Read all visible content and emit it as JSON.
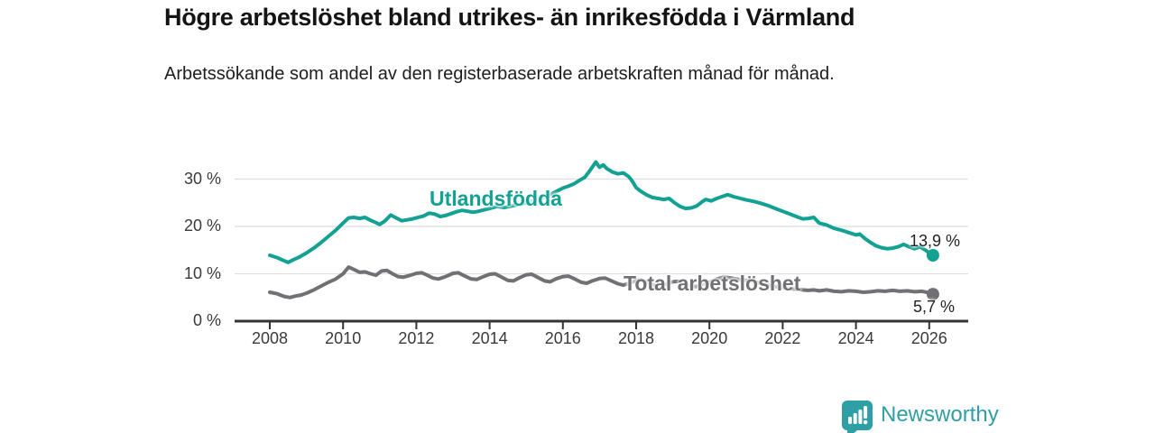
{
  "header": {
    "title": "Högre arbetslöshet bland utrikes- än inrikesfödda i Värmland",
    "subtitle": "Arbetssökande som andel av den registerbaserade arbetskraften månad för månad."
  },
  "branding": {
    "wordmark": "Newsworthy",
    "color": "#2E9FA4",
    "logo_icon": "newsworthy-speech-bubble-barchart-icon"
  },
  "chart_data": {
    "type": "line",
    "title": "Högre arbetslöshet bland utrikes- än inrikesfödda i Värmland",
    "subtitle": "Arbetssökande som andel av den registerbaserade arbetskraften månad för månad.",
    "xlabel": "",
    "ylabel": "",
    "unit": "%",
    "grid": true,
    "x_axis": {
      "range": [
        2007,
        2027.1
      ],
      "ticks": [
        {
          "value": 2008,
          "label": "2008"
        },
        {
          "value": 2010,
          "label": "2010"
        },
        {
          "value": 2012,
          "label": "2012"
        },
        {
          "value": 2014,
          "label": "2014"
        },
        {
          "value": 2016,
          "label": "2016"
        },
        {
          "value": 2018,
          "label": "2018"
        },
        {
          "value": 2020,
          "label": "2020"
        },
        {
          "value": 2022,
          "label": "2022"
        },
        {
          "value": 2024,
          "label": "2024"
        },
        {
          "value": 2026,
          "label": "2026"
        }
      ]
    },
    "y_axis": {
      "range": [
        0,
        35.5
      ],
      "ticks": [
        {
          "value": 0,
          "label": "0 %"
        },
        {
          "value": 10,
          "label": "10 %"
        },
        {
          "value": 20,
          "label": "20 %"
        },
        {
          "value": 30,
          "label": "30 %"
        }
      ]
    },
    "colors": {
      "grid": "#dedede",
      "axis": "#333333"
    },
    "series": [
      {
        "name": "Utlandsfödda",
        "color": "#12A192",
        "end_label": "13,9 %",
        "end_value": 13.9,
        "points": [
          [
            2008.0,
            13.9
          ],
          [
            2008.2,
            13.4
          ],
          [
            2008.35,
            12.9
          ],
          [
            2008.5,
            12.4
          ],
          [
            2008.65,
            13.0
          ],
          [
            2008.8,
            13.5
          ],
          [
            2009.0,
            14.4
          ],
          [
            2009.2,
            15.4
          ],
          [
            2009.4,
            16.6
          ],
          [
            2009.6,
            17.9
          ],
          [
            2009.8,
            19.2
          ],
          [
            2010.0,
            20.7
          ],
          [
            2010.15,
            21.8
          ],
          [
            2010.3,
            21.9
          ],
          [
            2010.45,
            21.7
          ],
          [
            2010.6,
            21.9
          ],
          [
            2010.75,
            21.3
          ],
          [
            2010.9,
            20.8
          ],
          [
            2011.0,
            20.4
          ],
          [
            2011.15,
            21.2
          ],
          [
            2011.3,
            22.4
          ],
          [
            2011.45,
            21.8
          ],
          [
            2011.6,
            21.2
          ],
          [
            2011.75,
            21.4
          ],
          [
            2011.9,
            21.6
          ],
          [
            2012.05,
            21.9
          ],
          [
            2012.2,
            22.2
          ],
          [
            2012.35,
            22.8
          ],
          [
            2012.5,
            22.6
          ],
          [
            2012.65,
            22.1
          ],
          [
            2012.8,
            22.3
          ],
          [
            2012.95,
            22.7
          ],
          [
            2013.1,
            23.1
          ],
          [
            2013.25,
            23.4
          ],
          [
            2013.4,
            23.2
          ],
          [
            2013.55,
            23.0
          ],
          [
            2013.7,
            23.2
          ],
          [
            2013.85,
            23.5
          ],
          [
            2014.0,
            23.8
          ],
          [
            2014.2,
            24.2
          ],
          [
            2014.4,
            24.0
          ],
          [
            2014.6,
            24.3
          ],
          [
            2014.8,
            24.6
          ],
          [
            2015.0,
            25.0
          ],
          [
            2015.2,
            25.4
          ],
          [
            2015.4,
            25.9
          ],
          [
            2015.6,
            26.5
          ],
          [
            2015.8,
            27.3
          ],
          [
            2016.0,
            28.1
          ],
          [
            2016.15,
            28.5
          ],
          [
            2016.3,
            29.0
          ],
          [
            2016.45,
            29.7
          ],
          [
            2016.6,
            30.4
          ],
          [
            2016.7,
            31.4
          ],
          [
            2016.8,
            32.5
          ],
          [
            2016.9,
            33.6
          ],
          [
            2017.0,
            32.5
          ],
          [
            2017.1,
            33.0
          ],
          [
            2017.2,
            32.2
          ],
          [
            2017.35,
            31.5
          ],
          [
            2017.5,
            31.1
          ],
          [
            2017.65,
            31.3
          ],
          [
            2017.8,
            30.5
          ],
          [
            2017.9,
            29.5
          ],
          [
            2018.0,
            28.2
          ],
          [
            2018.15,
            27.3
          ],
          [
            2018.3,
            26.6
          ],
          [
            2018.45,
            26.1
          ],
          [
            2018.6,
            25.9
          ],
          [
            2018.75,
            25.7
          ],
          [
            2018.9,
            25.9
          ],
          [
            2019.05,
            25.0
          ],
          [
            2019.2,
            24.2
          ],
          [
            2019.35,
            23.8
          ],
          [
            2019.5,
            23.9
          ],
          [
            2019.65,
            24.3
          ],
          [
            2019.8,
            25.2
          ],
          [
            2019.9,
            25.7
          ],
          [
            2020.05,
            25.4
          ],
          [
            2020.2,
            25.9
          ],
          [
            2020.35,
            26.3
          ],
          [
            2020.5,
            26.7
          ],
          [
            2020.65,
            26.3
          ],
          [
            2020.8,
            26.0
          ],
          [
            2021.0,
            25.6
          ],
          [
            2021.2,
            25.3
          ],
          [
            2021.4,
            24.9
          ],
          [
            2021.6,
            24.4
          ],
          [
            2021.8,
            23.8
          ],
          [
            2022.0,
            23.2
          ],
          [
            2022.2,
            22.6
          ],
          [
            2022.4,
            22.0
          ],
          [
            2022.55,
            21.6
          ],
          [
            2022.7,
            21.7
          ],
          [
            2022.85,
            21.9
          ],
          [
            2023.0,
            20.7
          ],
          [
            2023.2,
            20.3
          ],
          [
            2023.4,
            19.6
          ],
          [
            2023.6,
            19.2
          ],
          [
            2023.8,
            18.7
          ],
          [
            2024.0,
            18.2
          ],
          [
            2024.1,
            18.4
          ],
          [
            2024.25,
            17.4
          ],
          [
            2024.4,
            16.6
          ],
          [
            2024.55,
            15.9
          ],
          [
            2024.7,
            15.5
          ],
          [
            2024.85,
            15.3
          ],
          [
            2025.0,
            15.4
          ],
          [
            2025.15,
            15.7
          ],
          [
            2025.3,
            16.2
          ],
          [
            2025.45,
            15.7
          ],
          [
            2025.6,
            15.3
          ],
          [
            2025.75,
            15.7
          ],
          [
            2025.9,
            15.0
          ],
          [
            2026.0,
            14.4
          ],
          [
            2026.1,
            13.9
          ]
        ]
      },
      {
        "name": "Total arbetslöshet",
        "color": "#717175",
        "end_label": "5,7 %",
        "end_value": 5.7,
        "points": [
          [
            2008.0,
            6.1
          ],
          [
            2008.2,
            5.8
          ],
          [
            2008.4,
            5.2
          ],
          [
            2008.55,
            5.0
          ],
          [
            2008.7,
            5.3
          ],
          [
            2008.85,
            5.5
          ],
          [
            2009.0,
            5.9
          ],
          [
            2009.2,
            6.6
          ],
          [
            2009.4,
            7.4
          ],
          [
            2009.6,
            8.2
          ],
          [
            2009.8,
            8.9
          ],
          [
            2010.0,
            10.0
          ],
          [
            2010.15,
            11.4
          ],
          [
            2010.3,
            10.9
          ],
          [
            2010.45,
            10.3
          ],
          [
            2010.6,
            10.4
          ],
          [
            2010.75,
            10.0
          ],
          [
            2010.9,
            9.7
          ],
          [
            2011.05,
            10.6
          ],
          [
            2011.2,
            10.7
          ],
          [
            2011.35,
            10.0
          ],
          [
            2011.5,
            9.4
          ],
          [
            2011.65,
            9.3
          ],
          [
            2011.8,
            9.6
          ],
          [
            2012.0,
            10.1
          ],
          [
            2012.15,
            10.2
          ],
          [
            2012.3,
            9.7
          ],
          [
            2012.45,
            9.1
          ],
          [
            2012.6,
            8.9
          ],
          [
            2012.8,
            9.4
          ],
          [
            2013.0,
            10.1
          ],
          [
            2013.15,
            10.2
          ],
          [
            2013.3,
            9.6
          ],
          [
            2013.5,
            8.9
          ],
          [
            2013.65,
            8.8
          ],
          [
            2013.8,
            9.3
          ],
          [
            2014.0,
            9.9
          ],
          [
            2014.15,
            10.0
          ],
          [
            2014.3,
            9.4
          ],
          [
            2014.5,
            8.6
          ],
          [
            2014.65,
            8.5
          ],
          [
            2014.8,
            9.1
          ],
          [
            2015.0,
            9.8
          ],
          [
            2015.15,
            9.9
          ],
          [
            2015.3,
            9.3
          ],
          [
            2015.5,
            8.5
          ],
          [
            2015.65,
            8.3
          ],
          [
            2015.8,
            8.9
          ],
          [
            2016.0,
            9.4
          ],
          [
            2016.15,
            9.5
          ],
          [
            2016.3,
            9.0
          ],
          [
            2016.5,
            8.2
          ],
          [
            2016.65,
            8.0
          ],
          [
            2016.8,
            8.5
          ],
          [
            2017.0,
            9.0
          ],
          [
            2017.15,
            9.1
          ],
          [
            2017.3,
            8.6
          ],
          [
            2017.5,
            7.9
          ],
          [
            2017.65,
            7.6
          ],
          [
            2017.8,
            8.0
          ],
          [
            2018.0,
            8.6
          ],
          [
            2018.15,
            8.7
          ],
          [
            2018.3,
            8.2
          ],
          [
            2018.5,
            7.6
          ],
          [
            2018.65,
            7.4
          ],
          [
            2018.8,
            7.8
          ],
          [
            2019.0,
            8.3
          ],
          [
            2019.15,
            8.4
          ],
          [
            2019.3,
            7.9
          ],
          [
            2019.5,
            7.4
          ],
          [
            2019.65,
            7.3
          ],
          [
            2019.8,
            7.7
          ],
          [
            2020.0,
            8.2
          ],
          [
            2020.2,
            8.9
          ],
          [
            2020.4,
            9.3
          ],
          [
            2020.6,
            9.1
          ],
          [
            2020.8,
            8.8
          ],
          [
            2021.0,
            8.6
          ],
          [
            2021.2,
            8.4
          ],
          [
            2021.4,
            8.0
          ],
          [
            2021.6,
            7.6
          ],
          [
            2021.8,
            7.3
          ],
          [
            2022.0,
            7.1
          ],
          [
            2022.2,
            6.9
          ],
          [
            2022.4,
            6.7
          ],
          [
            2022.55,
            6.6
          ],
          [
            2022.7,
            6.5
          ],
          [
            2022.85,
            6.6
          ],
          [
            2023.0,
            6.4
          ],
          [
            2023.2,
            6.6
          ],
          [
            2023.4,
            6.3
          ],
          [
            2023.6,
            6.2
          ],
          [
            2023.8,
            6.4
          ],
          [
            2024.0,
            6.3
          ],
          [
            2024.2,
            6.1
          ],
          [
            2024.4,
            6.2
          ],
          [
            2024.6,
            6.4
          ],
          [
            2024.8,
            6.3
          ],
          [
            2025.0,
            6.5
          ],
          [
            2025.2,
            6.3
          ],
          [
            2025.4,
            6.4
          ],
          [
            2025.6,
            6.2
          ],
          [
            2025.8,
            6.3
          ],
          [
            2026.0,
            6.0
          ],
          [
            2026.1,
            5.7
          ]
        ]
      }
    ],
    "legend_position": "inline-labels"
  }
}
